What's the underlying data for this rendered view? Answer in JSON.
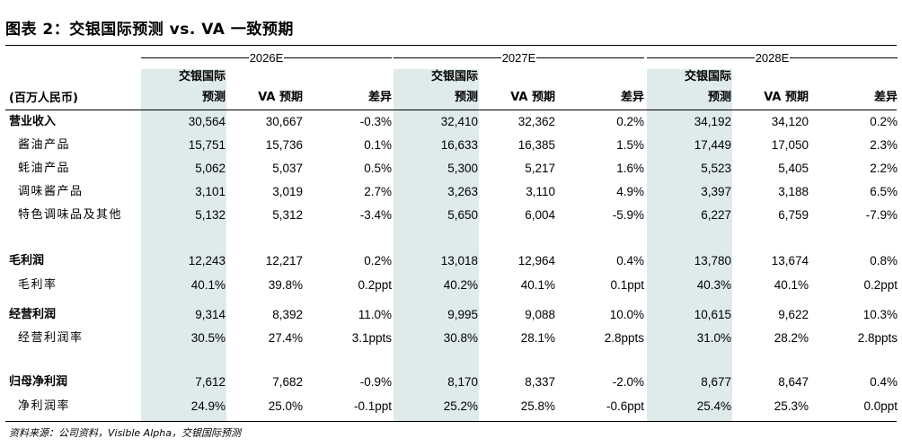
{
  "title": "图表 2：交银国际预测 vs. VA 一致预期",
  "unit_label": "(百万人民币)",
  "groups": [
    "2026E",
    "2027E",
    "2028E"
  ],
  "col_headers": {
    "forecast_line1": "交银国际",
    "forecast_line2": "预测",
    "consensus": "VA 预期",
    "diff": "差异"
  },
  "rows": [
    {
      "label": "营业收入",
      "bold": true,
      "cells": [
        "30,564",
        "30,667",
        "-0.3%",
        "32,410",
        "32,362",
        "0.2%",
        "34,192",
        "34,120",
        "0.2%"
      ]
    },
    {
      "label": "酱油产品",
      "bold": false,
      "cells": [
        "15,751",
        "15,736",
        "0.1%",
        "16,633",
        "16,385",
        "1.5%",
        "17,449",
        "17,050",
        "2.3%"
      ]
    },
    {
      "label": "蚝油产品",
      "bold": false,
      "cells": [
        "5,062",
        "5,037",
        "0.5%",
        "5,300",
        "5,217",
        "1.6%",
        "5,523",
        "5,405",
        "2.2%"
      ]
    },
    {
      "label": "调味酱产品",
      "bold": false,
      "cells": [
        "3,101",
        "3,019",
        "2.7%",
        "3,263",
        "3,110",
        "4.9%",
        "3,397",
        "3,188",
        "6.5%"
      ]
    },
    {
      "label": "特色调味品及其他",
      "bold": false,
      "cells": [
        "5,132",
        "5,312",
        "-3.4%",
        "5,650",
        "6,004",
        "-5.9%",
        "6,227",
        "6,759",
        "-7.9%"
      ]
    },
    {
      "label": "毛利润",
      "bold": true,
      "cells": [
        "12,243",
        "12,217",
        "0.2%",
        "13,018",
        "12,964",
        "0.4%",
        "13,780",
        "13,674",
        "0.8%"
      ]
    },
    {
      "label": "毛利率",
      "bold": false,
      "cells": [
        "40.1%",
        "39.8%",
        "0.2ppt",
        "40.2%",
        "40.1%",
        "0.1ppt",
        "40.3%",
        "40.1%",
        "0.2ppt"
      ]
    },
    {
      "label": "经营利润",
      "bold": true,
      "cells": [
        "9,314",
        "8,392",
        "11.0%",
        "9,995",
        "9,088",
        "10.0%",
        "10,615",
        "9,622",
        "10.3%"
      ]
    },
    {
      "label": "经营利润率",
      "bold": false,
      "cells": [
        "30.5%",
        "27.4%",
        "3.1ppts",
        "30.8%",
        "28.1%",
        "2.8ppts",
        "31.0%",
        "28.2%",
        "2.8ppts"
      ]
    },
    {
      "label": "归母净利润",
      "bold": true,
      "cells": [
        "7,612",
        "7,682",
        "-0.9%",
        "8,170",
        "8,337",
        "-2.0%",
        "8,677",
        "8,647",
        "0.4%"
      ]
    },
    {
      "label": "净利润率",
      "bold": false,
      "cells": [
        "24.9%",
        "25.0%",
        "-0.1ppt",
        "25.2%",
        "25.8%",
        "-0.6ppt",
        "25.4%",
        "25.3%",
        "0.0ppt"
      ]
    }
  ],
  "source": "资料来源：公司资料，Visible Alpha，交银国际预测",
  "colors": {
    "shade": "#dfeaea",
    "rule": "#000000"
  }
}
